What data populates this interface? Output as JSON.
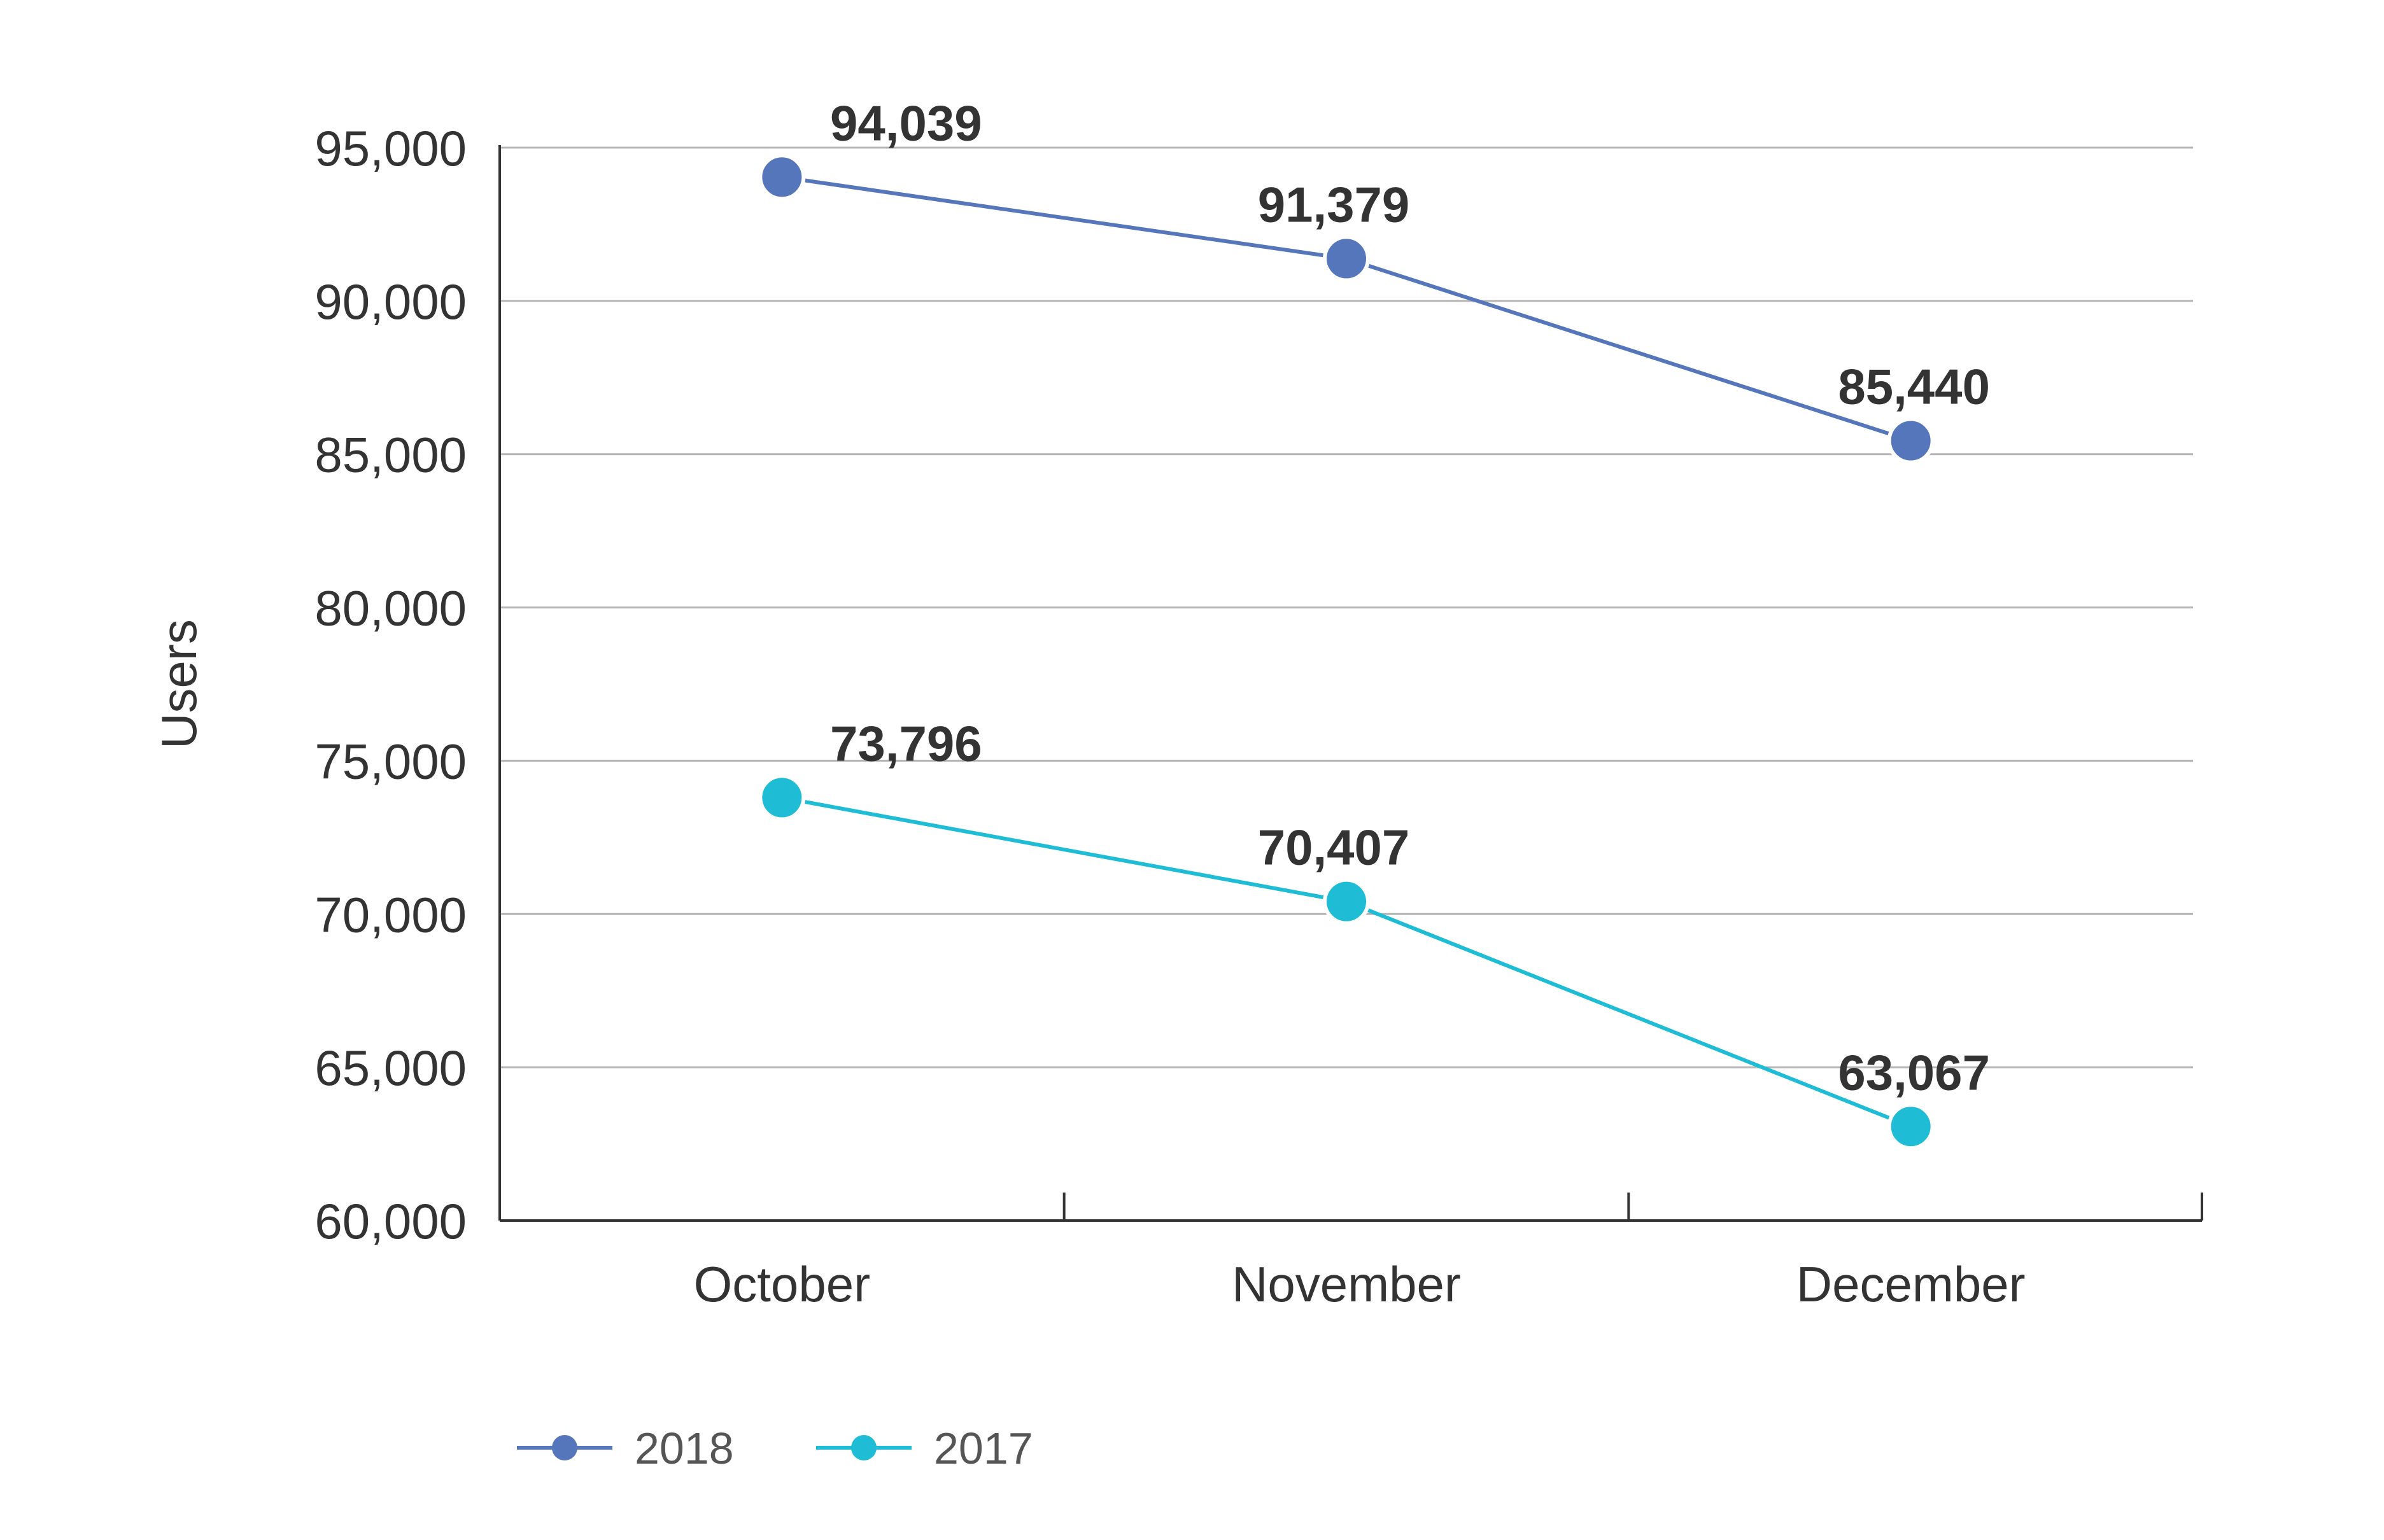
{
  "chart_data": {
    "type": "line",
    "categories": [
      "October",
      "November",
      "December"
    ],
    "series": [
      {
        "name": "2018",
        "color": "#5676bc",
        "values": [
          94039,
          91379,
          85440
        ],
        "labels": [
          "94,039",
          "91,379",
          "85,440"
        ]
      },
      {
        "name": "2017",
        "color": "#1fbcd6",
        "values": [
          73796,
          70407,
          63067
        ],
        "labels": [
          "73,796",
          "70,407",
          "63,067"
        ]
      }
    ],
    "ylabel": "Users",
    "xlabel": "",
    "ylim": [
      60000,
      95000
    ],
    "yticks": [
      60000,
      65000,
      70000,
      75000,
      80000,
      85000,
      90000,
      95000
    ],
    "ytick_labels": [
      "60,000",
      "65,000",
      "70,000",
      "75,000",
      "80,000",
      "85,000",
      "90,000",
      "95,000"
    ],
    "grid": true,
    "legend": "bottom-left"
  }
}
